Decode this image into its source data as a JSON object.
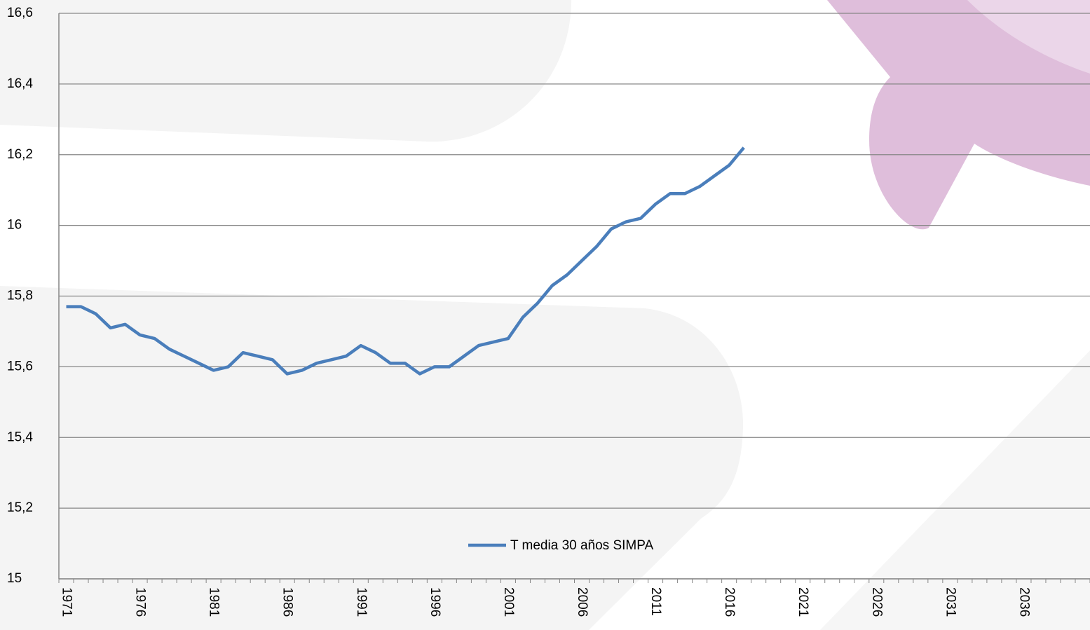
{
  "chart_data": {
    "type": "line",
    "categories": [
      "1971",
      null,
      null,
      null,
      null,
      "1976",
      null,
      null,
      null,
      null,
      "1981",
      null,
      null,
      null,
      null,
      "1986",
      null,
      null,
      null,
      null,
      "1991",
      null,
      null,
      null,
      null,
      "1996",
      null,
      null,
      null,
      null,
      "2001",
      null,
      null,
      null,
      null,
      "2006",
      null,
      null,
      null,
      null,
      "2011",
      null,
      null,
      null,
      null,
      "2016",
      null,
      null,
      null,
      null,
      "2021",
      null,
      null,
      null,
      null,
      "2026",
      null,
      null,
      null,
      null,
      "2031",
      null,
      null,
      null,
      null,
      "2036",
      null,
      null,
      null,
      null
    ],
    "series": [
      {
        "name": "T media 30 años SIMPA",
        "color": "#4a7ebb",
        "values": [
          15.77,
          15.77,
          15.75,
          15.71,
          15.72,
          15.69,
          15.68,
          15.65,
          15.63,
          15.61,
          15.59,
          15.6,
          15.64,
          15.63,
          15.62,
          15.58,
          15.59,
          15.61,
          15.62,
          15.63,
          15.66,
          15.64,
          15.61,
          15.61,
          15.58,
          15.6,
          15.6,
          15.63,
          15.66,
          15.67,
          15.68,
          15.74,
          15.78,
          15.83,
          15.86,
          15.9,
          15.94,
          15.99,
          16.01,
          16.02,
          16.06,
          16.09,
          16.09,
          16.11,
          16.14,
          16.17,
          16.22,
          null,
          null,
          null,
          null,
          null,
          null,
          null,
          null,
          null,
          null,
          null,
          null,
          null,
          null,
          null,
          null,
          null,
          null,
          null,
          null,
          null,
          null,
          null
        ]
      }
    ],
    "ylim": [
      15,
      16.6
    ],
    "yticks": [
      15,
      {
        "value": 15.2,
        "label": "15,2"
      },
      {
        "value": 15.4,
        "label": "15,4"
      },
      {
        "value": 15.6,
        "label": "15,6"
      },
      {
        "value": 15.8,
        "label": "15,8"
      },
      16,
      {
        "value": 16.2,
        "label": "16,2"
      },
      {
        "value": 16.4,
        "label": "16,4"
      },
      {
        "value": 16.6,
        "label": "16,6"
      }
    ],
    "grid": true
  }
}
